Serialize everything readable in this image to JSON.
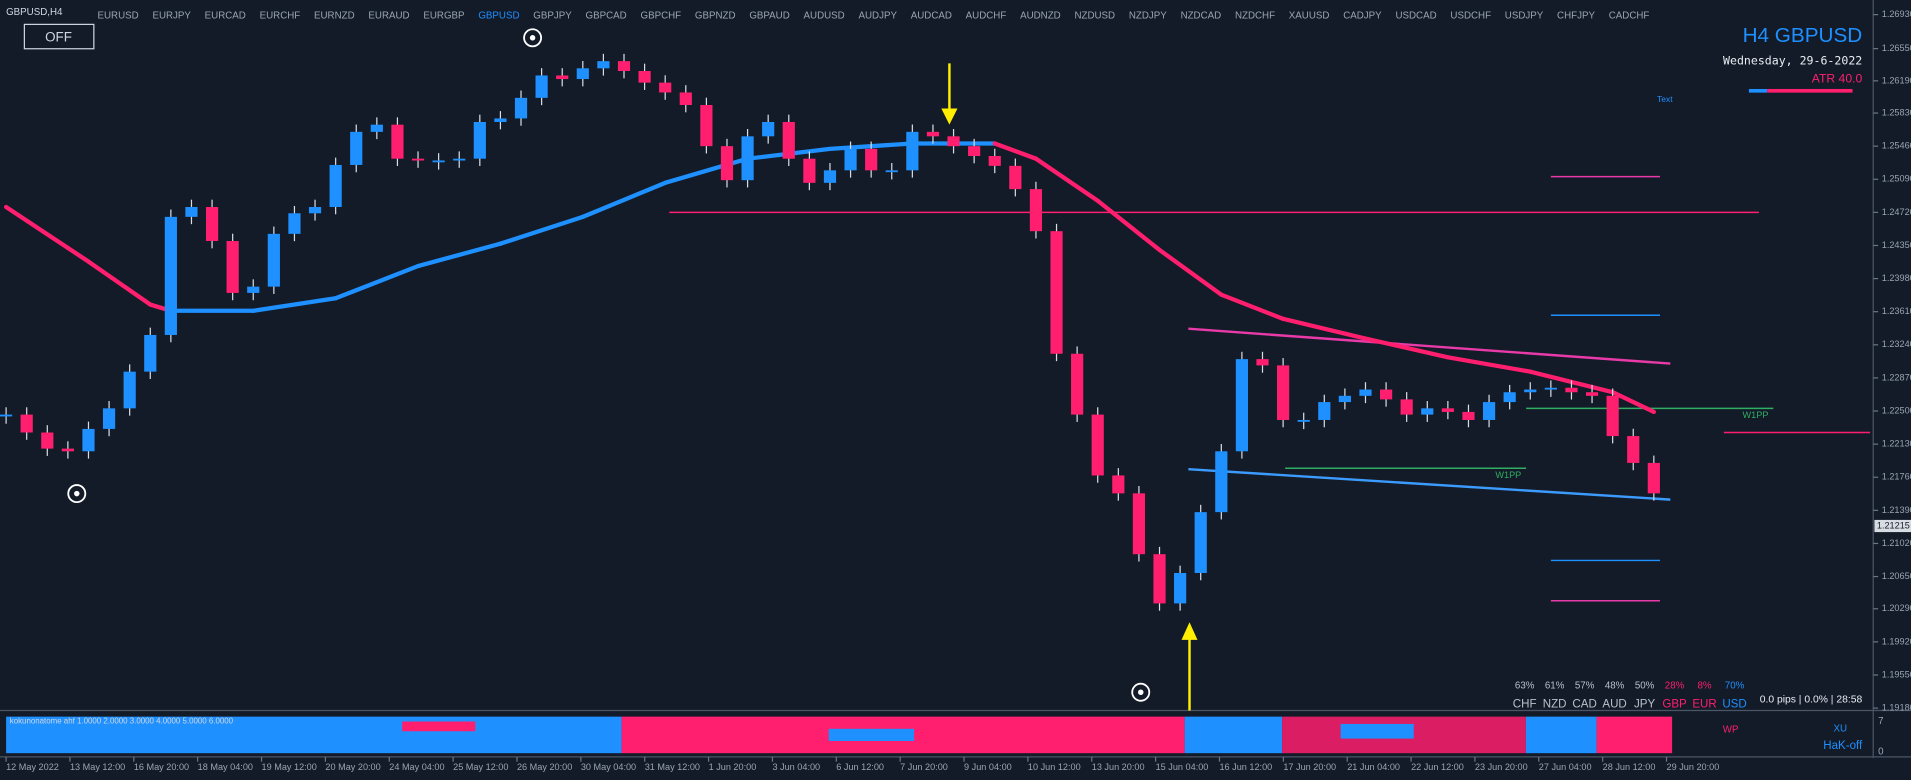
{
  "ui": {
    "symbol": "GBPUSD,H4",
    "tabs": [
      "EURUSD",
      "EURJPY",
      "EURCAD",
      "EURCHF",
      "EURNZD",
      "EURAUD",
      "EURGBP",
      "GBPUSD",
      "GBPJPY",
      "GBPCAD",
      "GBPCHF",
      "GBPNZD",
      "GBPAUD",
      "AUDUSD",
      "AUDJPY",
      "AUDCAD",
      "AUDCHF",
      "AUDNZD",
      "NZDUSD",
      "NZDJPY",
      "NZDCAD",
      "NZDCHF",
      "XAUUSD",
      "CADJPY",
      "USDCAD",
      "USDCHF",
      "USDJPY",
      "CHFJPY",
      "CADCHF"
    ],
    "active_tab": "GBPUSD",
    "button": "OFF",
    "heading": "H4 GBPUSD",
    "date": "Wednesday, 29-6-2022",
    "atr": "ATR 40.0",
    "text_label": "Text",
    "strength": {
      "percents": [
        "63%",
        "61%",
        "57%",
        "48%",
        "50%",
        "28%",
        "8%",
        "70%"
      ],
      "currencies": [
        "CHF",
        "NZD",
        "CAD",
        "AUD",
        "JPY",
        "GBP",
        "EUR",
        "USD"
      ],
      "colors": [
        "#b8c0cc",
        "#b8c0cc",
        "#b8c0cc",
        "#b8c0cc",
        "#b8c0cc",
        "#ff1f6e",
        "#ff1f6e",
        "#1e90ff"
      ]
    },
    "status": "0.0 pips | 0.0% | 28:58",
    "indicator": {
      "label": "kokunonatome ahf 1.0000 2.0000 3.0000 4.0000 5.0000 6.0000",
      "ymax": "7",
      "ymin": "0",
      "wp": "WP",
      "xu": "XU",
      "hak": "HaK-off"
    }
  },
  "chart_data": {
    "type": "candlestick",
    "xlim": [
      0,
      80
    ],
    "ylim": [
      1.1918,
      1.2693
    ],
    "yticks": [
      {
        "value": 1.2693,
        "label": "1.26930"
      },
      {
        "value": 1.2655,
        "label": "1.26550"
      },
      {
        "value": 1.2619,
        "label": "1.26190"
      },
      {
        "value": 1.2583,
        "label": "1.25830"
      },
      {
        "value": 1.2546,
        "label": "1.25460"
      },
      {
        "value": 1.2509,
        "label": "1.25090"
      },
      {
        "value": 1.2472,
        "label": "1.24720"
      },
      {
        "value": 1.2435,
        "label": "1.24350"
      },
      {
        "value": 1.2398,
        "label": "1.23980"
      },
      {
        "value": 1.2361,
        "label": "1.23610"
      },
      {
        "value": 1.2324,
        "label": "1.23240"
      },
      {
        "value": 1.2287,
        "label": "1.22870"
      },
      {
        "value": 1.225,
        "label": "1.22500"
      },
      {
        "value": 1.2213,
        "label": "1.22130"
      },
      {
        "value": 1.2176,
        "label": "1.21760"
      },
      {
        "value": 1.2139,
        "label": "1.21390"
      },
      {
        "value": 1.2102,
        "label": "1.21020"
      },
      {
        "value": 1.2065,
        "label": "1.20650"
      },
      {
        "value": 1.2029,
        "label": "1.20290"
      },
      {
        "value": 1.1992,
        "label": "1.19920"
      },
      {
        "value": 1.1955,
        "label": "1.19550"
      },
      {
        "value": 1.1918,
        "label": "1.19180"
      }
    ],
    "time_labels": [
      "12 May 2022",
      "13 May 12:00",
      "16 May 20:00",
      "18 May 04:00",
      "19 May 12:00",
      "20 May 20:00",
      "24 May 04:00",
      "25 May 12:00",
      "26 May 20:00",
      "30 May 04:00",
      "31 May 12:00",
      "1 Jun 20:00",
      "3 Jun 04:00",
      "6 Jun 12:00",
      "7 Jun 20:00",
      "9 Jun 04:00",
      "10 Jun 12:00",
      "13 Jun 20:00",
      "15 Jun 04:00",
      "16 Jun 12:00",
      "17 Jun 20:00",
      "21 Jun 04:00",
      "22 Jun 12:00",
      "23 Jun 20:00",
      "27 Jun 04:00",
      "28 Jun 12:00",
      "29 Jun 20:00"
    ],
    "close": [
      1.2246,
      1.2226,
      1.2208,
      1.2205,
      1.223,
      1.2253,
      1.2294,
      1.2335,
      1.2467,
      1.2478,
      1.244,
      1.2382,
      1.2389,
      1.2448,
      1.2471,
      1.2478,
      1.2525,
      1.2562,
      1.257,
      1.2532,
      1.253,
      1.253,
      1.2532,
      1.2573,
      1.2577,
      1.26,
      1.2625,
      1.2621,
      1.2633,
      1.2641,
      1.263,
      1.2617,
      1.2606,
      1.2592,
      1.2546,
      1.2508,
      1.2557,
      1.2573,
      1.2532,
      1.2505,
      1.2519,
      1.2543,
      1.2519,
      1.2519,
      1.2562,
      1.2557,
      1.2546,
      1.2535,
      1.2524,
      1.2498,
      1.2451,
      1.2314,
      1.2246,
      1.2178,
      1.2158,
      1.209,
      1.2035,
      1.2069,
      1.2137,
      1.2205,
      1.2308,
      1.2301,
      1.224,
      1.224,
      1.226,
      1.2267,
      1.2274,
      1.2263,
      1.2246,
      1.2253,
      1.2249,
      1.224,
      1.226,
      1.2271,
      1.2274,
      1.2276,
      1.2271,
      1.2267,
      1.2222,
      1.2192,
      1.2158
    ],
    "up_color": "#1e90ff",
    "down_color": "#ff1f6e",
    "ma": {
      "x": [
        0,
        4,
        7,
        8,
        12,
        16,
        20,
        24,
        28,
        32,
        36,
        40,
        44,
        48,
        50,
        53,
        56,
        59,
        62,
        66,
        70,
        74,
        78,
        80
      ],
      "values": [
        1.2478,
        1.2417,
        1.2369,
        1.2362,
        1.2362,
        1.2376,
        1.2412,
        1.2437,
        1.2467,
        1.2505,
        1.2532,
        1.2543,
        1.2549,
        1.2549,
        1.2532,
        1.2485,
        1.243,
        1.238,
        1.2353,
        1.2331,
        1.231,
        1.2294,
        1.2271,
        1.2249
      ]
    },
    "levels": [
      {
        "value": 1.2472,
        "x": [
          32.2,
          85.1
        ],
        "color": "#ff1f6e"
      },
      {
        "value": 1.2512,
        "x": [
          75,
          80.3
        ],
        "color": "#e83aa8"
      },
      {
        "value": 1.2357,
        "x": [
          75,
          80.3
        ],
        "color": "#1e90ff"
      },
      {
        "value": 1.2253,
        "x": [
          73.8,
          85.8
        ],
        "color": "#2fae63",
        "label": "W1PP"
      },
      {
        "value": 1.2186,
        "x": [
          62.1,
          73.8
        ],
        "color": "#2fae63",
        "label": "W1PP"
      },
      {
        "value": 1.2083,
        "x": [
          75,
          80.3
        ],
        "color": "#1e90ff"
      },
      {
        "value": 1.2038,
        "x": [
          75,
          80.3
        ],
        "color": "#e83aa8"
      },
      {
        "value": 1.2226,
        "x": [
          83.4,
          90.5
        ],
        "color": "#ff1f6e"
      }
    ],
    "trendlines": [
      {
        "x": [
          57.4,
          80.8
        ],
        "values": [
          1.2342,
          1.2303
        ],
        "color": "#e83aa8"
      },
      {
        "x": [
          57.4,
          80.8
        ],
        "values": [
          1.2185,
          1.2151
        ],
        "color": "#3b9bff"
      }
    ],
    "last_price": {
      "value": 1.21215,
      "label": "1.21215"
    }
  }
}
